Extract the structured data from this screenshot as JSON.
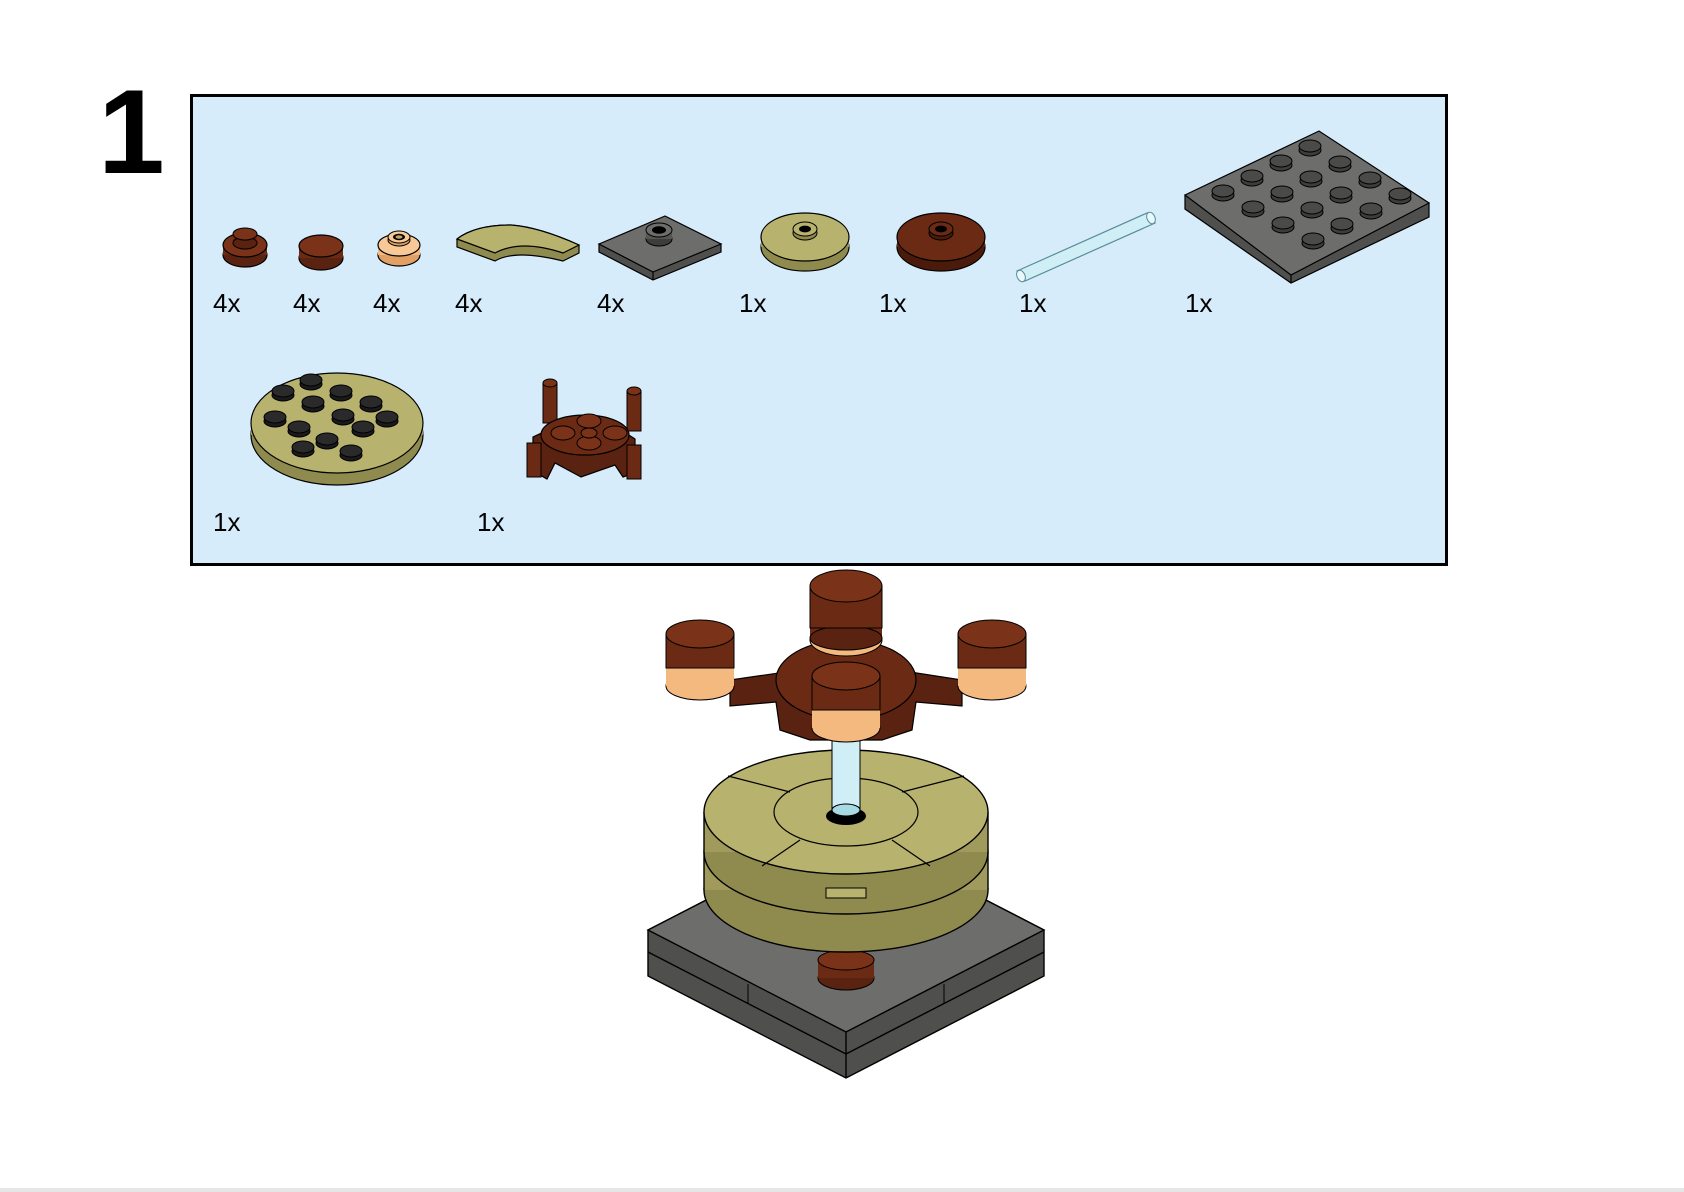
{
  "step": {
    "number": "1"
  },
  "parts_list": {
    "row1": [
      {
        "id": "round-plate-1x1-brown",
        "qty": "4x"
      },
      {
        "id": "round-tile-1x1-brown",
        "qty": "4x"
      },
      {
        "id": "round-plate-1x1-open-stud-tan",
        "qty": "4x"
      },
      {
        "id": "curved-tile-olive",
        "qty": "4x"
      },
      {
        "id": "jumper-plate-2x2-dark-grey",
        "qty": "4x"
      },
      {
        "id": "round-plate-2x2-olive",
        "qty": "1x"
      },
      {
        "id": "round-plate-2x2-brown",
        "qty": "1x"
      },
      {
        "id": "bar-transparent-light-blue",
        "qty": "1x"
      },
      {
        "id": "plate-4x4-dark-grey",
        "qty": "1x"
      }
    ],
    "row2": [
      {
        "id": "round-plate-4x4-olive",
        "qty": "1x"
      },
      {
        "id": "candelabra-holder-brown",
        "qty": "1x"
      }
    ]
  },
  "colors": {
    "panel_bg": "#d6ecfb",
    "brown": "#6b2a14",
    "brown_dark": "#4a1a0a",
    "tan": "#f4b97f",
    "olive": "#b8b26f",
    "olive_dark": "#8f8a4e",
    "grey": "#6d6d6b",
    "grey_dark": "#4f4f4d",
    "trans_blue": "#cfeef5"
  }
}
